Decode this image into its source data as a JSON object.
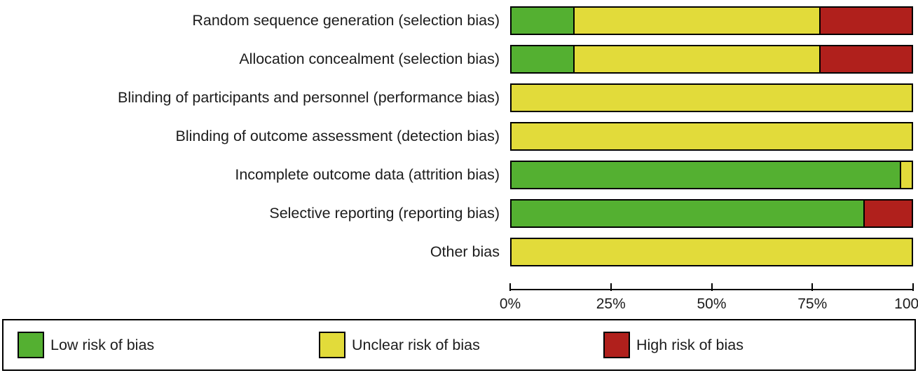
{
  "chart_data": {
    "type": "bar",
    "variant": "horizontal-stacked-percentage",
    "title": "",
    "xlabel": "",
    "ylabel": "",
    "xlim": [
      0,
      100
    ],
    "x_ticks": [
      "0%",
      "25%",
      "50%",
      "75%",
      "100%"
    ],
    "grid": false,
    "legend_position": "bottom",
    "categories": [
      "Random sequence generation (selection bias)",
      "Allocation concealment (selection bias)",
      "Blinding of participants and personnel (performance bias)",
      "Blinding of outcome assessment (detection bias)",
      "Incomplete outcome data (attrition bias)",
      "Selective reporting (reporting bias)",
      "Other bias"
    ],
    "series": [
      {
        "name": "Low risk of bias",
        "color": "#54B031",
        "values": [
          15.4,
          15.4,
          0,
          0,
          97,
          88,
          0
        ]
      },
      {
        "name": "Unclear risk of bias",
        "color": "#E2DB3A",
        "values": [
          61.5,
          61.5,
          100,
          100,
          3,
          0,
          100
        ]
      },
      {
        "name": "High risk of bias",
        "color": "#B0201C",
        "values": [
          23.1,
          23.1,
          0,
          0,
          0,
          12,
          0
        ]
      }
    ]
  }
}
